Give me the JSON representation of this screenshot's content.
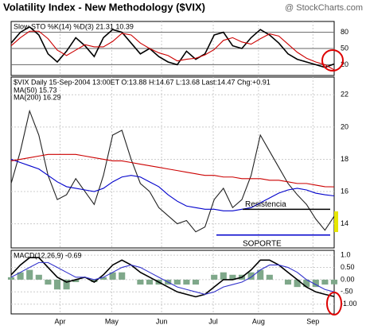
{
  "header": {
    "title": "Volatility Index - New Methodology ($VIX)",
    "watermark": "@ StockCharts.com"
  },
  "chart_data": [
    {
      "type": "line",
      "legend": "Slow STO %K(14) %D(3) 21.31 10.39",
      "series": [
        {
          "color": "#000000",
          "values": [
            60,
            80,
            90,
            75,
            40,
            25,
            45,
            70,
            55,
            35,
            70,
            85,
            80,
            60,
            40,
            50,
            35,
            25,
            20,
            45,
            30,
            40,
            75,
            80,
            55,
            50,
            70,
            85,
            75,
            60,
            40,
            30,
            25,
            20,
            15,
            21.31
          ]
        },
        {
          "color": "#cc0000",
          "values": [
            55,
            70,
            82,
            82,
            68,
            47,
            37,
            47,
            57,
            53,
            53,
            63,
            78,
            75,
            60,
            50,
            42,
            37,
            27,
            30,
            32,
            38,
            48,
            65,
            70,
            62,
            58,
            68,
            77,
            73,
            58,
            43,
            32,
            25,
            20,
            10.39
          ]
        }
      ],
      "xlim": [
        0,
        35
      ],
      "ylim": [
        0,
        100
      ],
      "yticks": [
        20,
        50,
        80
      ],
      "grid": true
    },
    {
      "type": "line",
      "legend": "$VIX Daily 15-Sep-2004 13:00ET O:13.88 H:14.67 L:13.68 Last:14.47 Chg:+0.91",
      "series": [
        {
          "color": "#222222",
          "values": [
            16.5,
            18.5,
            21.0,
            19.5,
            17.0,
            15.5,
            15.8,
            16.8,
            16.0,
            15.2,
            17.0,
            19.5,
            19.8,
            18.0,
            16.5,
            16.0,
            15.0,
            14.5,
            14.0,
            14.2,
            13.5,
            13.8,
            15.5,
            16.2,
            15.0,
            15.5,
            17.0,
            19.5,
            18.5,
            17.5,
            16.5,
            15.8,
            15.2,
            14.3,
            13.6,
            14.47
          ]
        },
        {
          "name": "MA(50) 15.73",
          "color": "#0000cc",
          "values": [
            18.0,
            17.8,
            17.6,
            17.4,
            17.0,
            16.6,
            16.3,
            16.2,
            16.1,
            16.0,
            16.2,
            16.6,
            16.9,
            17.0,
            16.9,
            16.6,
            16.3,
            15.8,
            15.4,
            15.1,
            15.0,
            14.9,
            14.9,
            14.8,
            14.8,
            14.9,
            15.0,
            15.3,
            15.6,
            15.9,
            16.1,
            16.2,
            16.1,
            15.9,
            15.8,
            15.73
          ]
        },
        {
          "name": "MA(200) 16.29",
          "color": "#cc0000",
          "values": [
            17.9,
            18.0,
            18.1,
            18.2,
            18.3,
            18.3,
            18.3,
            18.3,
            18.2,
            18.1,
            18.0,
            17.9,
            17.9,
            17.8,
            17.7,
            17.6,
            17.5,
            17.4,
            17.3,
            17.2,
            17.1,
            17.0,
            17.0,
            16.9,
            16.9,
            16.8,
            16.8,
            16.8,
            16.7,
            16.7,
            16.6,
            16.5,
            16.5,
            16.4,
            16.3,
            16.29
          ]
        }
      ],
      "annotations": [
        {
          "text": "Resistencia",
          "value": 14.9,
          "color": "#000000"
        },
        {
          "text": "SOPORTE",
          "value": 13.3,
          "color": "#0000cc"
        }
      ],
      "xlim": [
        0,
        35
      ],
      "ylim": [
        12.5,
        23.1
      ],
      "yticks": [
        14,
        16,
        18,
        20,
        22
      ],
      "grid": true
    },
    {
      "type": "macd",
      "legend": "MACD(12,26,9) -0.69",
      "series": [
        {
          "color": "#000000",
          "values": [
            0.2,
            0.6,
            0.9,
            0.9,
            0.5,
            0.1,
            -0.1,
            0.0,
            0.1,
            -0.1,
            0.2,
            0.6,
            0.8,
            0.6,
            0.3,
            0.1,
            -0.1,
            -0.3,
            -0.5,
            -0.6,
            -0.7,
            -0.6,
            -0.3,
            0.0,
            0.0,
            0.1,
            0.4,
            0.8,
            0.8,
            0.6,
            0.3,
            0.0,
            -0.3,
            -0.5,
            -0.6,
            -0.69
          ]
        },
        {
          "color": "#3333cc",
          "values": [
            0.1,
            0.3,
            0.5,
            0.7,
            0.7,
            0.5,
            0.3,
            0.1,
            0.1,
            0.0,
            0.1,
            0.3,
            0.5,
            0.6,
            0.5,
            0.3,
            0.1,
            -0.1,
            -0.3,
            -0.4,
            -0.5,
            -0.6,
            -0.5,
            -0.3,
            -0.2,
            -0.1,
            0.1,
            0.4,
            0.6,
            0.6,
            0.5,
            0.3,
            0.0,
            -0.2,
            -0.4,
            -0.5
          ]
        }
      ],
      "histogram": {
        "color": "#7fa88a",
        "values": [
          0.1,
          0.3,
          0.4,
          0.2,
          -0.2,
          -0.4,
          -0.4,
          -0.1,
          0,
          -0.1,
          0.1,
          0.3,
          0.3,
          0,
          -0.2,
          -0.2,
          -0.2,
          -0.2,
          -0.2,
          -0.2,
          -0.2,
          0,
          0.2,
          0.3,
          0.2,
          0.2,
          0.3,
          0.4,
          0.2,
          0,
          -0.2,
          -0.3,
          -0.3,
          -0.3,
          -0.2,
          -0.19
        ]
      },
      "xlim": [
        0,
        35
      ],
      "ylim": [
        -1.4,
        1.2
      ],
      "yticks": [
        {
          "value": 1.0,
          "label": "1.0"
        },
        {
          "value": 0.5,
          "label": "0.50"
        },
        {
          "value": 0,
          "label": "0.00"
        },
        {
          "value": -0.5,
          "label": "-.50"
        },
        {
          "value": -1.0,
          "label": "-1.00"
        }
      ],
      "xticks": [
        {
          "value": 5.3,
          "label": "Apr"
        },
        {
          "value": 10.9,
          "label": "May"
        },
        {
          "value": 16.3,
          "label": "Jun"
        },
        {
          "value": 21.9,
          "label": "Jul"
        },
        {
          "value": 26.8,
          "label": "Aug"
        },
        {
          "value": 32.7,
          "label": "Sep"
        }
      ],
      "grid": true
    }
  ]
}
